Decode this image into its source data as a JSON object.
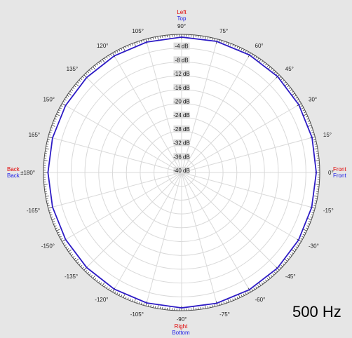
{
  "window": {
    "frequency_label": "500 Hz",
    "direction_labels": {
      "top_left": "Left",
      "top_right": "Top",
      "bottom_left": "Right",
      "bottom_right": "Bottom",
      "left_top": "Back",
      "left_bottom": "Back",
      "right_top": "Front",
      "right_bottom": "Front"
    }
  },
  "chart_data": {
    "type": "line",
    "polar": true,
    "title": "",
    "subtitle": "",
    "radial_unit": "dB",
    "radial_ticks": [
      -4,
      -8,
      -12,
      -16,
      -20,
      -24,
      -28,
      -32,
      -36,
      -40
    ],
    "radial_tick_labels": [
      "-4 dB",
      "-8 dB",
      "-12 dB",
      "-16 dB",
      "-20 dB",
      "-24 dB",
      "-28 dB",
      "-32 dB",
      "-36 dB",
      "-40 dB"
    ],
    "angle_tick_labels": [
      {
        "angle": 90,
        "label": "90°"
      },
      {
        "angle": 75,
        "label": "75°"
      },
      {
        "angle": 60,
        "label": "60°"
      },
      {
        "angle": 45,
        "label": "45°"
      },
      {
        "angle": 30,
        "label": "30°"
      },
      {
        "angle": 15,
        "label": "15°"
      },
      {
        "angle": 0,
        "label": "0°"
      },
      {
        "angle": -15,
        "label": "-15°"
      },
      {
        "angle": -30,
        "label": "-30°"
      },
      {
        "angle": -45,
        "label": "-45°"
      },
      {
        "angle": -60,
        "label": "-60°"
      },
      {
        "angle": -75,
        "label": "-75°"
      },
      {
        "angle": -90,
        "label": "-90°"
      },
      {
        "angle": -105,
        "label": "-105°"
      },
      {
        "angle": -120,
        "label": "-120°"
      },
      {
        "angle": -135,
        "label": "-135°"
      },
      {
        "angle": -150,
        "label": "-150°"
      },
      {
        "angle": -165,
        "label": "-165°"
      },
      {
        "angle": 180,
        "label": "±180°"
      },
      {
        "angle": 165,
        "label": "165°"
      },
      {
        "angle": 150,
        "label": "150°"
      },
      {
        "angle": 135,
        "label": "135°"
      },
      {
        "angle": 120,
        "label": "120°"
      },
      {
        "angle": 105,
        "label": "105°"
      }
    ],
    "grid": true,
    "series": [
      {
        "color": "#2d1bc5",
        "points": [
          {
            "angle": 0,
            "db": -1.0
          },
          {
            "angle": 15,
            "db": -0.9
          },
          {
            "angle": 30,
            "db": -0.8
          },
          {
            "angle": 45,
            "db": -0.7
          },
          {
            "angle": 60,
            "db": -0.7
          },
          {
            "angle": 75,
            "db": -0.7
          },
          {
            "angle": 90,
            "db": -0.8
          },
          {
            "angle": 105,
            "db": -0.9
          },
          {
            "angle": 120,
            "db": -1.0
          },
          {
            "angle": 135,
            "db": -1.1
          },
          {
            "angle": 150,
            "db": -1.2
          },
          {
            "angle": 165,
            "db": -1.3
          },
          {
            "angle": 180,
            "db": -1.3
          },
          {
            "angle": -165,
            "db": -1.3
          },
          {
            "angle": -150,
            "db": -1.2
          },
          {
            "angle": -135,
            "db": -1.1
          },
          {
            "angle": -120,
            "db": -1.0
          },
          {
            "angle": -105,
            "db": -0.9
          },
          {
            "angle": -90,
            "db": -0.8
          },
          {
            "angle": -75,
            "db": -0.8
          },
          {
            "angle": -60,
            "db": -0.8
          },
          {
            "angle": -45,
            "db": -0.8
          },
          {
            "angle": -30,
            "db": -0.9
          },
          {
            "angle": -15,
            "db": -1.0
          }
        ]
      }
    ]
  }
}
